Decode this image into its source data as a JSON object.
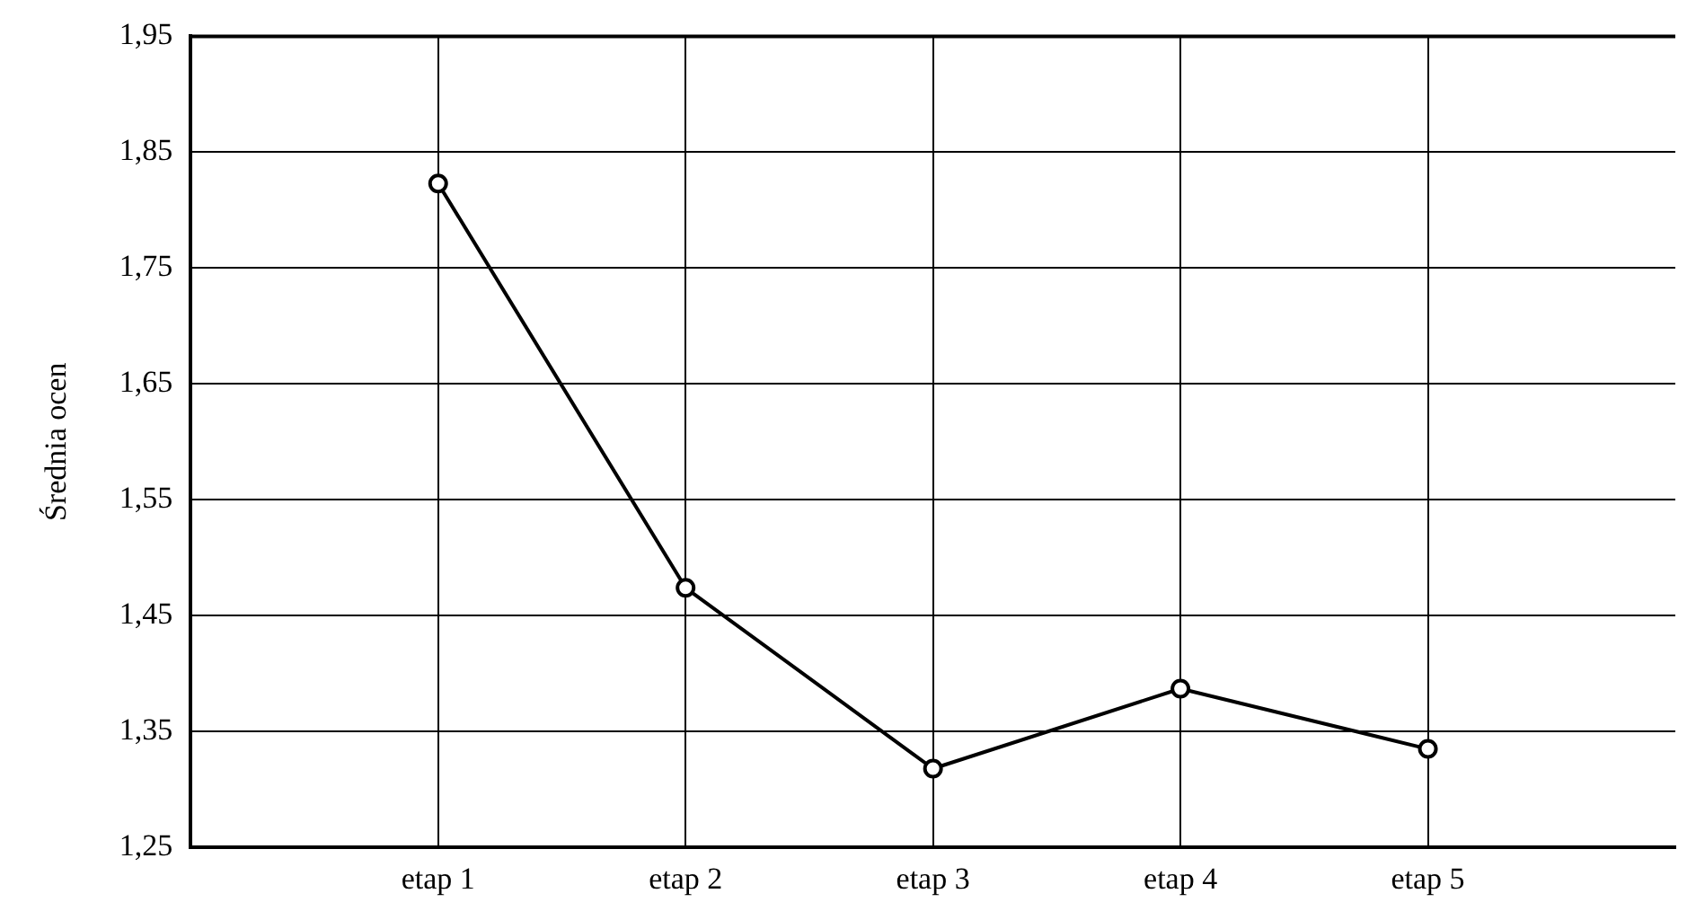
{
  "chart_data": {
    "type": "line",
    "ylabel": "Średnia ocen",
    "categories": [
      "etap 1",
      "etap 2",
      "etap 3",
      "etap 4",
      "etap 5"
    ],
    "series": [
      {
        "color": "#000000",
        "values": [
          1.823,
          1.474,
          1.318,
          1.387,
          1.335
        ]
      }
    ],
    "ylim": [
      1.25,
      1.95
    ],
    "yticks": [
      {
        "value": 1.25,
        "label": "1,25"
      },
      {
        "value": 1.35,
        "label": "1,35"
      },
      {
        "value": 1.45,
        "label": "1,45"
      },
      {
        "value": 1.55,
        "label": "1,55"
      },
      {
        "value": 1.65,
        "label": "1,65"
      },
      {
        "value": 1.75,
        "label": "1,75"
      },
      {
        "value": 1.85,
        "label": "1,85"
      },
      {
        "value": 1.95,
        "label": "1,95"
      }
    ],
    "grid": true,
    "legend": false,
    "marker": "circle",
    "line_style": "solid"
  }
}
